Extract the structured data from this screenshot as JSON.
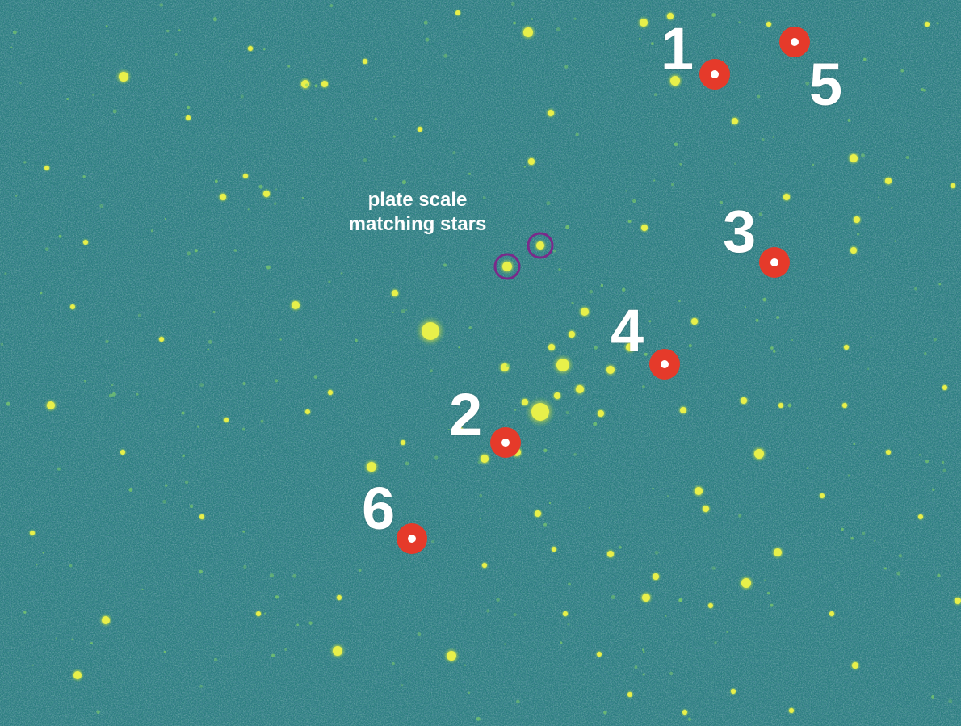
{
  "image": {
    "subject": "starfield",
    "palette": {
      "background": "#2a7d7f",
      "noise_dark": "#2b4f78",
      "star": "#e8f04a",
      "marker_ring": "#e53a2a",
      "marker_center": "#ffffff",
      "match_circle": "#7a2a8a"
    }
  },
  "annotation": {
    "line1": "plate scale",
    "line2": "matching stars"
  },
  "markers": [
    {
      "id": "1",
      "label": "1"
    },
    {
      "id": "2",
      "label": "2"
    },
    {
      "id": "3",
      "label": "3"
    },
    {
      "id": "4",
      "label": "4"
    },
    {
      "id": "5",
      "label": "5"
    },
    {
      "id": "6",
      "label": "6"
    }
  ]
}
